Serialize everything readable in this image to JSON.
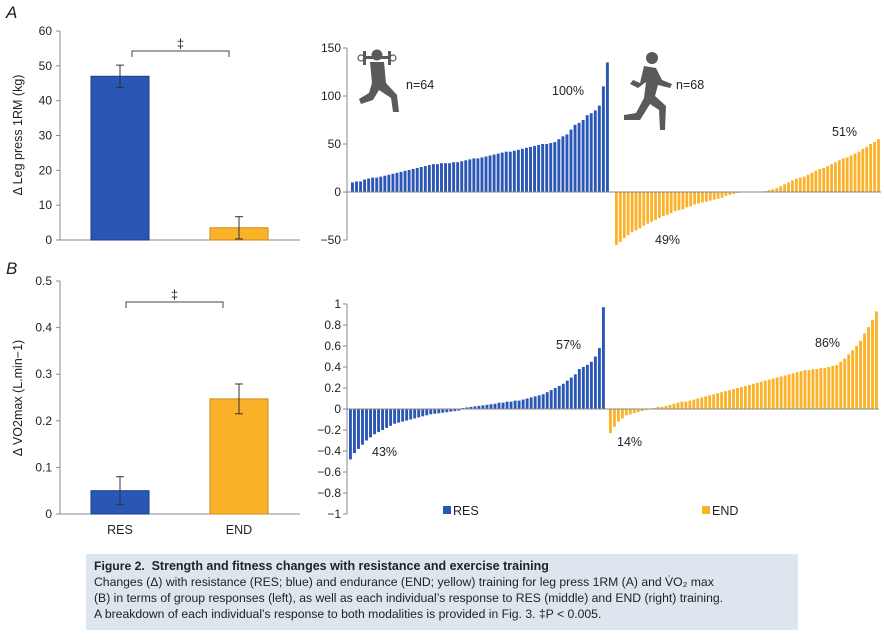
{
  "panel_labels": [
    "A",
    "B"
  ],
  "legend": {
    "res": "RES",
    "end": "END"
  },
  "icons": {
    "res": "weightlifter-icon",
    "end": "runner-icon"
  },
  "colors": {
    "res": "#2a56b6",
    "end": "#fbb22a",
    "axis": "#888888",
    "text": "#222222"
  },
  "caption": {
    "label": "Figure 2.",
    "title": "Strength and fitness changes with resistance and exercise training",
    "line1": "Changes (Δ) with resistance (RES; blue) and endurance (END; yellow) training for leg press 1RM (A) and V̇O₂ max",
    "line2": "(B) in terms of group responses (left), as well as each individual’s response to RES (middle) and END (right) training.",
    "line3": "A breakdown of each individual’s response to both modalities is provided in Fig. 3. ‡P < 0.005."
  },
  "chart_data": [
    {
      "id": "A-group",
      "type": "bar",
      "panel": "A",
      "categories": [
        "RES",
        "END"
      ],
      "values": [
        47,
        3.5
      ],
      "errors": [
        3.2,
        3.2
      ],
      "ylabel": "Δ Leg press 1RM (kg)",
      "ylim": [
        0,
        60
      ],
      "yticks": [
        0,
        10,
        20,
        30,
        40,
        50,
        60
      ],
      "significance": "‡"
    },
    {
      "id": "A-individual",
      "type": "bar",
      "panel": "A",
      "ylim": [
        -50,
        150
      ],
      "yticks": [
        -50,
        0,
        50,
        100,
        150
      ],
      "series": [
        {
          "name": "RES",
          "n_label": "n=64",
          "label_pos": "100%",
          "values": [
            10,
            11,
            11,
            13,
            14,
            15,
            15,
            16,
            17,
            18,
            19,
            20,
            21,
            22,
            23,
            24,
            25,
            26,
            27,
            28,
            29,
            29,
            30,
            30,
            30,
            31,
            31,
            32,
            33,
            34,
            35,
            35,
            36,
            37,
            38,
            39,
            40,
            41,
            42,
            42,
            43,
            44,
            45,
            46,
            47,
            48,
            49,
            50,
            50,
            51,
            52,
            55,
            58,
            60,
            65,
            70,
            72,
            75,
            80,
            82,
            85,
            90,
            110,
            135
          ]
        },
        {
          "name": "END",
          "n_label": "n=68",
          "label_neg": "49%",
          "label_pos": "51%",
          "values": [
            -55,
            -52,
            -48,
            -45,
            -42,
            -40,
            -38,
            -35,
            -33,
            -31,
            -29,
            -27,
            -25,
            -24,
            -22,
            -20,
            -19,
            -18,
            -16,
            -15,
            -13,
            -12,
            -11,
            -10,
            -9,
            -8,
            -7,
            -6,
            -4,
            -3,
            -2,
            -1,
            -0.5,
            0,
            0,
            0,
            0,
            0.5,
            1,
            2,
            3,
            4,
            6,
            8,
            10,
            12,
            14,
            15,
            16,
            18,
            20,
            22,
            24,
            25,
            27,
            29,
            31,
            33,
            35,
            36,
            38,
            40,
            42,
            45,
            47,
            50,
            52,
            55
          ]
        }
      ]
    },
    {
      "id": "B-group",
      "type": "bar",
      "panel": "B",
      "categories": [
        "RES",
        "END"
      ],
      "values": [
        0.05,
        0.247
      ],
      "errors": [
        0.03,
        0.032
      ],
      "ylabel": "Δ VO2max (L.min−1)",
      "ylim": [
        0,
        0.5
      ],
      "yticks": [
        0,
        0.1,
        0.2,
        0.3,
        0.4,
        0.5
      ],
      "significance": "‡"
    },
    {
      "id": "B-individual",
      "type": "bar",
      "panel": "B",
      "ylim": [
        -1,
        1
      ],
      "yticks": [
        -1,
        -0.8,
        -0.6,
        -0.4,
        -0.2,
        0,
        0.2,
        0.4,
        0.6,
        0.8,
        1
      ],
      "series": [
        {
          "name": "RES",
          "label_neg": "43%",
          "label_pos": "57%",
          "values": [
            -0.48,
            -0.42,
            -0.38,
            -0.34,
            -0.3,
            -0.27,
            -0.24,
            -0.22,
            -0.2,
            -0.18,
            -0.16,
            -0.14,
            -0.13,
            -0.12,
            -0.11,
            -0.1,
            -0.09,
            -0.08,
            -0.07,
            -0.06,
            -0.05,
            -0.045,
            -0.04,
            -0.035,
            -0.03,
            -0.025,
            -0.02,
            -0.015,
            0.01,
            0.015,
            0.02,
            0.025,
            0.03,
            0.035,
            0.04,
            0.045,
            0.05,
            0.06,
            0.06,
            0.07,
            0.07,
            0.08,
            0.08,
            0.09,
            0.1,
            0.11,
            0.12,
            0.13,
            0.14,
            0.16,
            0.18,
            0.2,
            0.22,
            0.24,
            0.27,
            0.3,
            0.33,
            0.38,
            0.4,
            0.42,
            0.45,
            0.5,
            0.58,
            0.97
          ]
        },
        {
          "name": "END",
          "label_neg": "14%",
          "label_pos": "86%",
          "values": [
            -0.23,
            -0.17,
            -0.12,
            -0.09,
            -0.06,
            -0.05,
            -0.04,
            -0.03,
            -0.02,
            -0.01,
            0.005,
            0.01,
            0.02,
            0.02,
            0.03,
            0.04,
            0.05,
            0.06,
            0.07,
            0.07,
            0.08,
            0.09,
            0.1,
            0.11,
            0.12,
            0.13,
            0.14,
            0.15,
            0.16,
            0.17,
            0.18,
            0.19,
            0.2,
            0.21,
            0.22,
            0.23,
            0.24,
            0.25,
            0.26,
            0.27,
            0.28,
            0.29,
            0.3,
            0.31,
            0.32,
            0.33,
            0.34,
            0.35,
            0.36,
            0.37,
            0.37,
            0.38,
            0.38,
            0.39,
            0.39,
            0.4,
            0.41,
            0.42,
            0.45,
            0.48,
            0.52,
            0.56,
            0.6,
            0.65,
            0.72,
            0.78,
            0.85,
            0.93
          ]
        }
      ]
    }
  ]
}
